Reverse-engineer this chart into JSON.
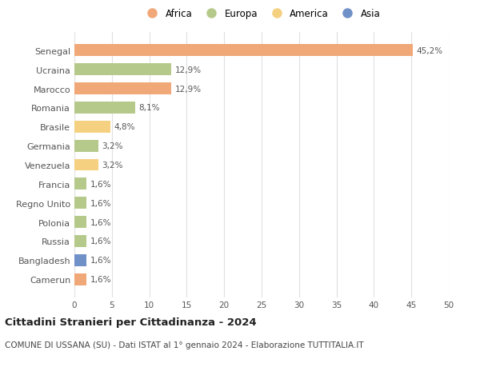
{
  "categories": [
    "Senegal",
    "Ucraina",
    "Marocco",
    "Romania",
    "Brasile",
    "Germania",
    "Venezuela",
    "Francia",
    "Regno Unito",
    "Polonia",
    "Russia",
    "Bangladesh",
    "Camerun"
  ],
  "values": [
    45.2,
    12.9,
    12.9,
    8.1,
    4.8,
    3.2,
    3.2,
    1.6,
    1.6,
    1.6,
    1.6,
    1.6,
    1.6
  ],
  "labels": [
    "45,2%",
    "12,9%",
    "12,9%",
    "8,1%",
    "4,8%",
    "3,2%",
    "3,2%",
    "1,6%",
    "1,6%",
    "1,6%",
    "1,6%",
    "1,6%",
    "1,6%"
  ],
  "continents": [
    "Africa",
    "Europa",
    "Africa",
    "Europa",
    "America",
    "Europa",
    "America",
    "Europa",
    "Europa",
    "Europa",
    "Europa",
    "Asia",
    "Africa"
  ],
  "continent_colors": {
    "Africa": "#F0A878",
    "Europa": "#B5C98A",
    "America": "#F5D080",
    "Asia": "#7090C8"
  },
  "legend_items": [
    "Africa",
    "Europa",
    "America",
    "Asia"
  ],
  "title": "Cittadini Stranieri per Cittadinanza - 2024",
  "subtitle": "COMUNE DI USSANA (SU) - Dati ISTAT al 1° gennaio 2024 - Elaborazione TUTTITALIA.IT",
  "xlim": [
    0,
    50
  ],
  "xticks": [
    0,
    5,
    10,
    15,
    20,
    25,
    30,
    35,
    40,
    45,
    50
  ],
  "background_color": "#ffffff",
  "grid_color": "#e0e0e0",
  "bar_height": 0.62
}
